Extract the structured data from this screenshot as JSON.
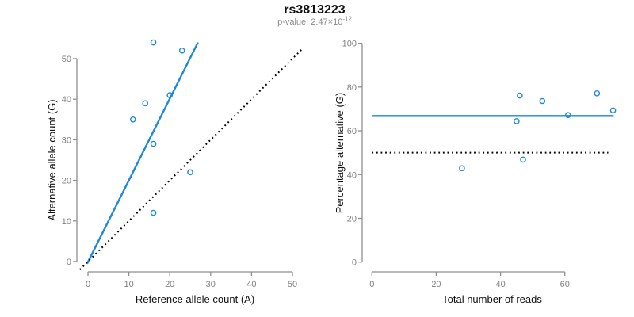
{
  "header": {
    "title": "rs3813223",
    "subtitle_prefix": "p-value: 2.47×10",
    "subtitle_exponent": "-12"
  },
  "colors": {
    "accent_blue": "#1e87e0",
    "axis_gray": "#8e8e8e",
    "tick_label_gray": "#7f7f7f",
    "reference_black": "#000000"
  },
  "chart_data": [
    {
      "type": "scatter",
      "name": "allele-counts-scatter",
      "xlabel": "Reference allele count (A)",
      "ylabel": "Alternative allele count (G)",
      "xticks": [
        0,
        10,
        20,
        30,
        40,
        50
      ],
      "yticks": [
        0,
        10,
        20,
        30,
        40,
        50
      ],
      "xlim": [
        0,
        50
      ],
      "ylim": [
        0,
        50
      ],
      "points": [
        [
          16,
          54
        ],
        [
          23,
          52
        ],
        [
          20,
          41
        ],
        [
          14,
          39
        ],
        [
          11,
          35
        ],
        [
          16,
          29
        ],
        [
          25,
          22
        ],
        [
          16,
          12
        ]
      ],
      "lines": [
        {
          "name": "regression-line",
          "style": "solid",
          "color": "#1e87e0",
          "x1": -0.2,
          "y1": -0.5,
          "x2": 26.9,
          "y2": 54.0
        },
        {
          "name": "identity-line",
          "style": "dotted",
          "color": "#000000",
          "x1": -2,
          "y1": -2,
          "x2": 52.2,
          "y2": 52.2
        }
      ]
    },
    {
      "type": "scatter",
      "name": "percentage-vs-reads-scatter",
      "xlabel": "Total number of reads",
      "ylabel": "Percentage alternative (G)",
      "xticks": [
        0,
        20,
        40,
        60
      ],
      "yticks": [
        0,
        20,
        40,
        60,
        80,
        100
      ],
      "xlim": [
        0,
        75
      ],
      "ylim": [
        0,
        100
      ],
      "points": [
        [
          70,
          77.1
        ],
        [
          75,
          69.3
        ],
        [
          61,
          67.2
        ],
        [
          53,
          73.6
        ],
        [
          46,
          76.1
        ],
        [
          45,
          64.4
        ],
        [
          47,
          46.8
        ],
        [
          28,
          42.9
        ]
      ],
      "lines": [
        {
          "name": "mean-percentage-line",
          "style": "solid",
          "color": "#1e87e0",
          "x1": 0,
          "y1": 66.8,
          "x2": 75.2,
          "y2": 66.8
        },
        {
          "name": "expected-50-percent-line",
          "style": "dotted",
          "color": "#000000",
          "x1": 0,
          "y1": 50,
          "x2": 73.5,
          "y2": 50
        }
      ]
    }
  ]
}
